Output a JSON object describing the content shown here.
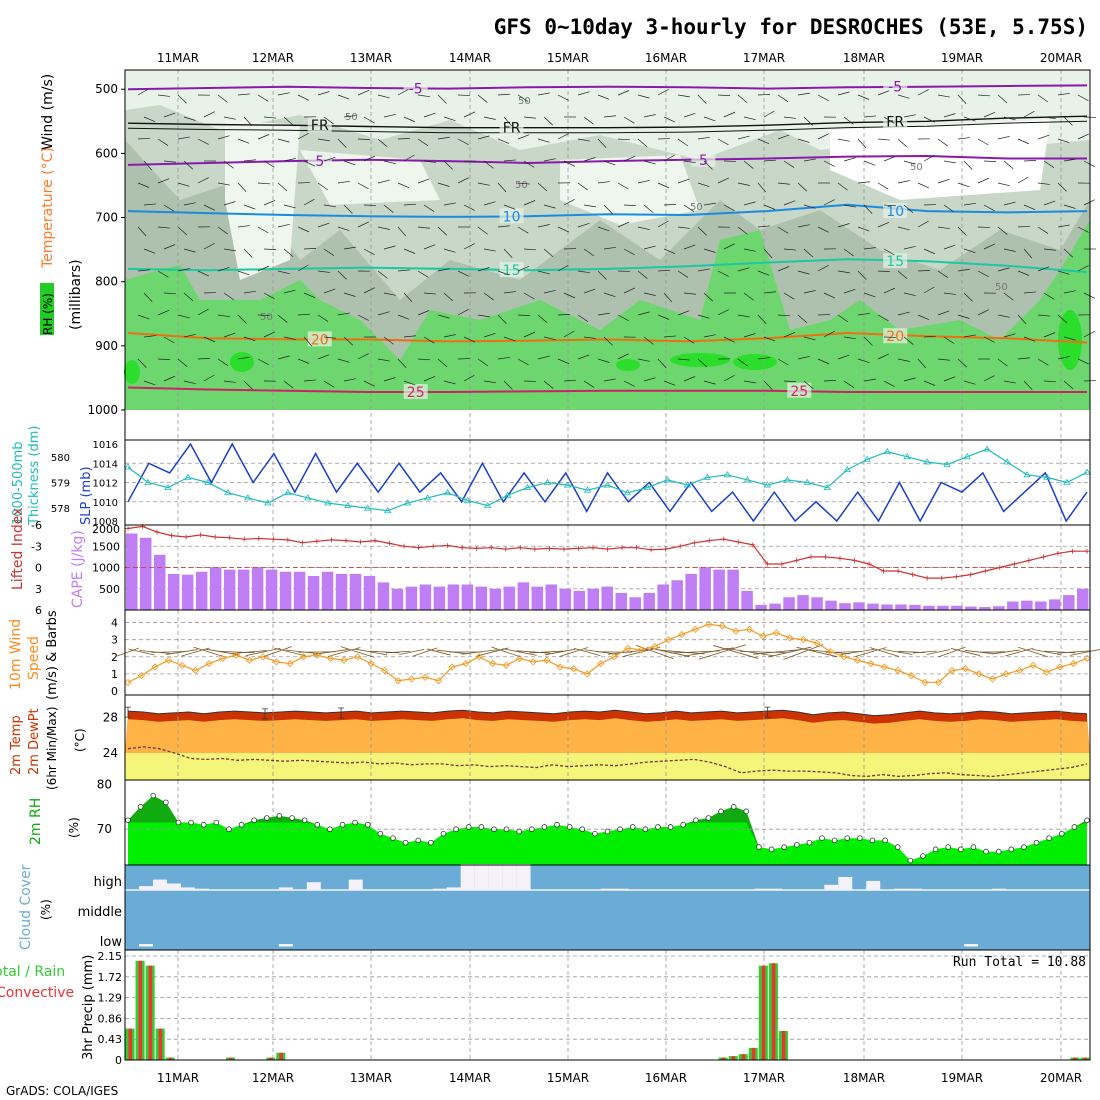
{
  "title": "GFS 0~10day 3-hourly for DESROCHES (53E, 5.75S)",
  "footer": "GrADS: COLA/IGES",
  "date_labels": [
    "11MAR",
    "12MAR",
    "13MAR",
    "14MAR",
    "15MAR",
    "16MAR",
    "17MAR",
    "18MAR",
    "19MAR",
    "20MAR"
  ],
  "colors": {
    "dew_red": "#cc2222",
    "dew_orange": "#ff8a1a",
    "rh_green": "#22cc22",
    "cloud_blue": "#6aacd6",
    "slp_blue": "#1a3fcc",
    "thick_cyan": "#22bbbb",
    "cape_purple": "#c07ef5",
    "li_red": "#cc3333",
    "wind_orange": "#f0a030",
    "barb_brown": "#7a5520",
    "temp_red": "#cc3300",
    "temp_orange": "#ffb347",
    "dew_yellow": "#f5f57a",
    "rh2m": "#00ee00",
    "rh2m_dark": "#11aa11",
    "precip_green": "#33cc33",
    "precip_red": "#ee3333"
  },
  "chart_data": [
    {
      "type": "heatmap",
      "name": "upper_profile",
      "left_label_parts": [
        "RH (%)",
        "Temperature (°C)",
        "Wind (m/s)",
        "(millibars)"
      ],
      "rh_legend": "RH (%)",
      "ylabel": "(millibars)",
      "yticks": [
        500,
        600,
        700,
        800,
        900,
        1000
      ],
      "ylim": [
        470,
        1000
      ],
      "isotherms": [
        {
          "label": "-5",
          "color": "#8a1aae",
          "level": [
            500,
            498,
            496,
            498,
            499,
            497,
            496,
            497,
            499,
            497,
            496,
            495,
            494
          ],
          "labels_at": [
            3,
            8
          ]
        },
        {
          "label": "FR",
          "color": "#111111",
          "level": [
            553,
            555,
            556,
            558,
            560,
            560,
            560,
            559,
            556,
            552,
            550,
            545,
            542
          ],
          "labels_at": [
            2,
            4,
            8
          ]
        },
        {
          "label": "5",
          "color": "#8a1aae",
          "level": [
            618,
            615,
            612,
            610,
            612,
            615,
            612,
            610,
            608,
            605,
            604,
            608,
            608
          ],
          "labels_at": [
            2,
            6
          ]
        },
        {
          "label": "10",
          "color": "#1a8ce0",
          "level": [
            690,
            693,
            696,
            698,
            699,
            698,
            695,
            696,
            690,
            680,
            690,
            692,
            690
          ],
          "labels_at": [
            4,
            8
          ]
        },
        {
          "label": "15",
          "color": "#1cc8a0",
          "level": [
            780,
            782,
            780,
            778,
            780,
            782,
            780,
            776,
            770,
            765,
            768,
            775,
            785
          ],
          "labels_at": [
            4,
            8
          ]
        },
        {
          "label": "20",
          "color": "#ef6f10",
          "level": [
            880,
            888,
            890,
            890,
            893,
            892,
            890,
            893,
            888,
            880,
            885,
            888,
            895
          ],
          "labels_at": [
            2,
            8
          ]
        },
        {
          "label": "25",
          "color": "#cc2266",
          "level": [
            965,
            968,
            970,
            972,
            972,
            971,
            970,
            970,
            970,
            972,
            972,
            972,
            972
          ],
          "labels_at": [
            3,
            7
          ]
        }
      ],
      "rh_lines_label": "50"
    },
    {
      "type": "line",
      "name": "slp_thickness",
      "left_label_top": "1000-500mb",
      "left_label_bottom": "Thickness (dm)",
      "right_label": "SLP (mb)",
      "y1ticks": [
        "580",
        "579",
        "578"
      ],
      "y2ticks": [
        "1016",
        "1014",
        "1012",
        "1010",
        "1008"
      ],
      "slp_range": [
        1008,
        1016
      ],
      "thickness_range": [
        577.5,
        580.5
      ],
      "series": [
        {
          "name": "SLP",
          "values": [
            1010,
            1014,
            1013,
            1016,
            1012,
            1016,
            1012,
            1015,
            1011,
            1015,
            1011,
            1014,
            1011,
            1014,
            1011,
            1013,
            1010,
            1014,
            1010,
            1013,
            1010,
            1013,
            1009,
            1013,
            1010,
            1012,
            1009,
            1012,
            1009,
            1011,
            1008,
            1011,
            1008,
            1010,
            1008,
            1011,
            1008,
            1012,
            1008,
            1012,
            1011,
            1013,
            1009,
            1011,
            1013,
            1008,
            1011
          ]
        },
        {
          "name": "Thickness",
          "values": [
            579.6,
            579.0,
            578.8,
            579.2,
            579.0,
            578.6,
            578.4,
            578.2,
            578.6,
            578.4,
            578.2,
            578.1,
            578.0,
            577.9,
            578.2,
            578.4,
            578.6,
            578.3,
            578.1,
            578.5,
            578.8,
            579.0,
            578.9,
            578.7,
            578.9,
            578.6,
            578.8,
            579.1,
            578.9,
            579.2,
            579.3,
            579.1,
            578.9,
            579.1,
            579.0,
            578.8,
            579.5,
            579.9,
            580.2,
            580.0,
            579.8,
            579.7,
            580.0,
            580.3,
            579.8,
            579.3,
            579.2,
            579.0,
            579.4
          ]
        }
      ]
    },
    {
      "type": "bar",
      "name": "cape_li",
      "left_label": "Lifted Index",
      "right_label": "CAPE (J/kg)",
      "li_ticks": [
        "-6",
        "-3",
        "0",
        "3",
        "6"
      ],
      "cape_ticks": [
        "2000",
        "1500",
        "1000",
        "500"
      ],
      "cape_ylim": [
        0,
        2000
      ],
      "li_ylim": [
        -6,
        6
      ],
      "cape": [
        1800,
        1700,
        1300,
        850,
        830,
        900,
        1000,
        950,
        950,
        1000,
        950,
        900,
        900,
        800,
        900,
        850,
        850,
        800,
        650,
        500,
        550,
        600,
        550,
        600,
        600,
        550,
        500,
        550,
        650,
        550,
        600,
        500,
        450,
        500,
        550,
        400,
        300,
        400,
        600,
        700,
        850,
        1000,
        950,
        950,
        450,
        120,
        150,
        300,
        350,
        300,
        220,
        160,
        180,
        150,
        130,
        130,
        120,
        100,
        100,
        100,
        80,
        70,
        90,
        200,
        220,
        200,
        250,
        350,
        500
      ],
      "lifted_index": [
        -5.5,
        -5.8,
        -5.0,
        -4.5,
        -4.3,
        -4.6,
        -4.3,
        -4.2,
        -4.0,
        -4.1,
        -4.0,
        -3.9,
        -3.5,
        -3.7,
        -3.9,
        -3.8,
        -3.6,
        -3.8,
        -3.4,
        -3.0,
        -2.8,
        -3.0,
        -3.1,
        -2.8,
        -2.7,
        -2.8,
        -2.6,
        -2.8,
        -2.6,
        -2.7,
        -2.6,
        -2.7,
        -2.8,
        -2.6,
        -2.8,
        -2.8,
        -2.5,
        -2.6,
        -3.0,
        -3.5,
        -3.8,
        -4.0,
        -3.6,
        -3.2,
        -0.5,
        -0.5,
        -1.0,
        -1.5,
        -1.5,
        -1.3,
        -1.0,
        -0.5,
        0.5,
        0.5,
        1.0,
        1.5,
        1.5,
        1.3,
        1.0,
        0.5,
        0.0,
        -0.5,
        -1.0,
        -1.5,
        -2.0,
        -2.3,
        -2.3
      ]
    },
    {
      "type": "line",
      "name": "wind10m",
      "left_label": "10m Wind Speed (m/s) & Barbs",
      "label_line1": "10m Wind",
      "label_line2": "Speed",
      "label_line3": "(m/s) & Barbs",
      "yticks": [
        "4",
        "3",
        "2",
        "1",
        "0"
      ],
      "ylim": [
        0,
        4.5
      ],
      "values": [
        0.5,
        0.9,
        1.4,
        1.8,
        1.5,
        1.2,
        1.6,
        1.9,
        2.1,
        1.8,
        2.0,
        1.7,
        1.6,
        2.0,
        2.1,
        1.9,
        1.8,
        2.0,
        1.6,
        1.2,
        0.6,
        0.7,
        0.8,
        0.6,
        1.4,
        1.6,
        2.0,
        1.6,
        1.5,
        1.9,
        1.7,
        1.8,
        1.4,
        1.3,
        1.0,
        1.6,
        2.0,
        2.5,
        2.4,
        2.6,
        3.0,
        3.3,
        3.6,
        3.9,
        3.8,
        3.5,
        3.6,
        3.2,
        3.4,
        3.1,
        3.0,
        2.8,
        2.3,
        2.0,
        1.8,
        1.6,
        1.4,
        1.2,
        0.9,
        0.5,
        0.5,
        1.2,
        1.3,
        1.0,
        0.7,
        1.0,
        1.2,
        1.5,
        1.1,
        1.4,
        1.6,
        1.9
      ]
    },
    {
      "type": "area",
      "name": "temp2m",
      "left_label": "2m Temp / 2m DewPt (6hr Min/Max)",
      "label_line1": "2m Temp",
      "label_line2": "2m DewPt",
      "label_line3": "(6hr Min/Max)",
      "unit": "(°C)",
      "yticks": [
        "28",
        "24"
      ],
      "ylim": [
        21,
        30.5
      ],
      "temp": [
        28.7,
        28.6,
        28.4,
        28.5,
        28.6,
        28.4,
        28.6,
        28.7,
        28.6,
        28.5,
        28.6,
        28.7,
        28.6,
        28.5,
        28.6,
        28.7,
        28.5,
        28.6,
        28.7,
        28.6,
        28.5,
        28.7,
        28.8,
        28.6,
        28.5,
        28.7,
        28.6,
        28.5,
        28.4,
        28.6,
        28.7,
        28.6,
        28.8,
        28.6,
        28.4,
        28.5,
        28.7,
        28.5,
        28.6,
        28.7,
        28.5,
        28.6,
        28.7,
        28.8,
        28.6,
        28.3,
        28.5,
        28.6,
        28.4,
        28.2,
        28.3,
        28.5,
        28.7,
        28.5,
        28.4,
        28.5,
        28.7,
        28.6,
        28.4,
        28.5,
        28.6,
        28.7,
        28.5,
        28.4
      ],
      "dew": [
        24.5,
        24.7,
        24.5,
        24.0,
        23.4,
        23.3,
        23.4,
        23.2,
        23.3,
        23.2,
        23.1,
        23.2,
        23.1,
        23.0,
        22.9,
        23.0,
        22.8,
        22.9,
        22.7,
        22.8,
        22.8,
        22.6,
        22.7,
        22.5,
        22.6,
        22.5,
        22.4,
        22.7,
        22.5,
        22.6,
        22.7,
        22.6,
        22.8,
        23.0,
        23.1,
        23.2,
        23.3,
        23.0,
        22.5,
        21.8,
        22.0,
        22.1,
        22.0,
        22.0,
        21.9,
        21.8,
        21.5,
        21.4,
        21.6,
        21.4,
        21.5,
        21.7,
        21.8,
        21.6,
        21.5,
        21.4,
        21.6,
        21.8,
        22.0,
        22.2,
        22.4,
        22.8
      ]
    },
    {
      "type": "area",
      "name": "rh2m",
      "label": "2m RH",
      "unit": "(%)",
      "yticks": [
        "80",
        "70"
      ],
      "ylim": [
        62,
        81
      ],
      "values": [
        72,
        75,
        77.5,
        76,
        71.5,
        71.5,
        71,
        71.5,
        70,
        71,
        72,
        72.5,
        73,
        72.5,
        72,
        71,
        70,
        71,
        71.5,
        71,
        69,
        68,
        67,
        67.5,
        67,
        69,
        70,
        70.5,
        70.5,
        70,
        70,
        69.5,
        70,
        70.5,
        71,
        70.5,
        70,
        69,
        69.5,
        70,
        70.5,
        70,
        70.5,
        70.5,
        71,
        72,
        72.5,
        74,
        75,
        74,
        66,
        65.5,
        66,
        66.5,
        67,
        68,
        67.5,
        68,
        68,
        67.5,
        67.5,
        66,
        63,
        64,
        65.5,
        66,
        65.5,
        66,
        65,
        65,
        65.5,
        66,
        67,
        68,
        69,
        70.5,
        72
      ]
    },
    {
      "type": "bar",
      "name": "cloud",
      "label": "Cloud Cover",
      "unit": "(%)",
      "levels": [
        "high",
        "middle",
        "low"
      ],
      "high": [
        0,
        15,
        40,
        25,
        10,
        5,
        0,
        0,
        0,
        0,
        0,
        10,
        0,
        30,
        0,
        0,
        40,
        0,
        0,
        0,
        0,
        0,
        5,
        10,
        100,
        100,
        100,
        100,
        100,
        0,
        0,
        0,
        0,
        0,
        5,
        5,
        0,
        0,
        0,
        0,
        0,
        0,
        0,
        0,
        0,
        5,
        5,
        0,
        0,
        0,
        20,
        50,
        0,
        35,
        0,
        5,
        5,
        0,
        0,
        0,
        0,
        0,
        5,
        0,
        0,
        0,
        0,
        0,
        0
      ],
      "low_marks": [
        1,
        11,
        60
      ]
    },
    {
      "type": "bar",
      "name": "precip",
      "left_label_1": "Total / Rain",
      "left_label_2": "Convective",
      "ylabel": "3hr Precip (mm)",
      "run_total_label": "Run Total = 10.88",
      "yticks": [
        "2.15",
        "1.72",
        "1.29",
        "0.86",
        "0.43",
        "0"
      ],
      "ylim": [
        0,
        2.15
      ],
      "values": [
        0.65,
        2.05,
        1.95,
        0.65,
        0.05,
        0,
        0,
        0,
        0,
        0,
        0.05,
        0,
        0,
        0,
        0.05,
        0.15,
        0,
        0,
        0,
        0,
        0,
        0,
        0,
        0,
        0,
        0,
        0,
        0,
        0,
        0,
        0,
        0,
        0,
        0,
        0,
        0,
        0,
        0,
        0,
        0,
        0,
        0,
        0,
        0,
        0,
        0,
        0,
        0,
        0,
        0,
        0,
        0,
        0,
        0,
        0,
        0,
        0,
        0,
        0,
        0.05,
        0.08,
        0.12,
        0.25,
        1.95,
        2.0,
        0.6,
        0,
        0,
        0,
        0,
        0,
        0,
        0,
        0,
        0,
        0,
        0,
        0,
        0,
        0,
        0,
        0,
        0,
        0,
        0,
        0,
        0,
        0,
        0,
        0,
        0,
        0,
        0,
        0,
        0.05,
        0.05
      ]
    }
  ]
}
